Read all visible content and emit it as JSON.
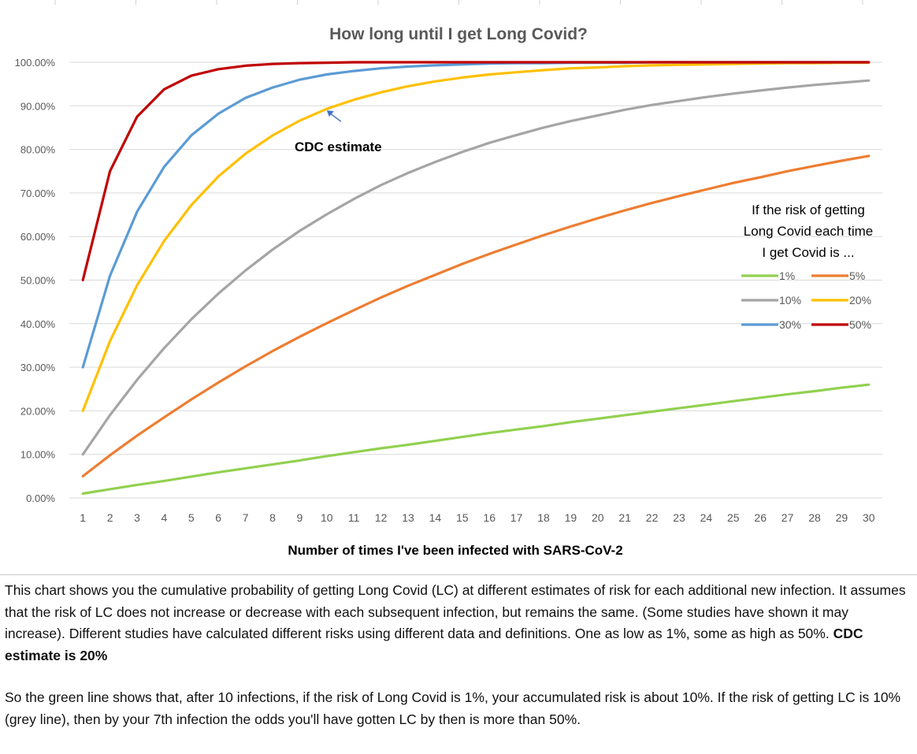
{
  "chart_data": {
    "type": "line",
    "title": "How long until I get Long Covid?",
    "xlabel": "Number of times I've been infected with SARS-CoV-2",
    "ylabel": "",
    "x": [
      1,
      2,
      3,
      4,
      5,
      6,
      7,
      8,
      9,
      10,
      11,
      12,
      13,
      14,
      15,
      16,
      17,
      18,
      19,
      20,
      21,
      22,
      23,
      24,
      25,
      26,
      27,
      28,
      29,
      30
    ],
    "ylim": [
      0,
      100
    ],
    "yticks": [
      "0.00%",
      "10.00%",
      "20.00%",
      "30.00%",
      "40.00%",
      "50.00%",
      "60.00%",
      "70.00%",
      "80.00%",
      "90.00%",
      "100.00%"
    ],
    "grid": true,
    "legend": {
      "title_lines": [
        "If the risk of getting",
        "Long Covid each time",
        "I get Covid is ..."
      ],
      "placement": "right"
    },
    "series": [
      {
        "name": "1%",
        "color": "#92d050",
        "values": [
          1.0,
          2.0,
          3.0,
          3.9,
          4.9,
          5.9,
          6.8,
          7.7,
          8.6,
          9.6,
          10.5,
          11.4,
          12.2,
          13.1,
          14.0,
          14.9,
          15.7,
          16.5,
          17.4,
          18.2,
          19.0,
          19.8,
          20.6,
          21.4,
          22.2,
          23.0,
          23.8,
          24.5,
          25.3,
          26.0
        ]
      },
      {
        "name": "5%",
        "color": "#ed7d31",
        "values": [
          5.0,
          9.8,
          14.3,
          18.5,
          22.6,
          26.5,
          30.2,
          33.7,
          37.0,
          40.1,
          43.1,
          46.0,
          48.7,
          51.2,
          53.7,
          56.0,
          58.2,
          60.3,
          62.3,
          64.2,
          66.0,
          67.7,
          69.3,
          70.8,
          72.3,
          73.6,
          75.0,
          76.2,
          77.4,
          78.5
        ]
      },
      {
        "name": "10%",
        "color": "#a5a5a5",
        "values": [
          10.0,
          19.0,
          27.1,
          34.4,
          41.0,
          46.9,
          52.2,
          57.0,
          61.3,
          65.1,
          68.6,
          71.8,
          74.6,
          77.1,
          79.4,
          81.5,
          83.3,
          85.0,
          86.5,
          87.8,
          89.1,
          90.2,
          91.1,
          92.0,
          92.8,
          93.5,
          94.2,
          94.8,
          95.3,
          95.8
        ]
      },
      {
        "name": "20%",
        "color": "#ffc000",
        "values": [
          20.0,
          36.0,
          48.8,
          59.0,
          67.2,
          73.8,
          79.0,
          83.2,
          86.6,
          89.3,
          91.4,
          93.1,
          94.5,
          95.6,
          96.5,
          97.2,
          97.7,
          98.2,
          98.6,
          98.8,
          99.1,
          99.3,
          99.4,
          99.5,
          99.6,
          99.7,
          99.8,
          99.8,
          99.9,
          99.9
        ]
      },
      {
        "name": "30%",
        "color": "#5b9bd5",
        "values": [
          30.0,
          51.0,
          65.7,
          76.0,
          83.2,
          88.2,
          91.8,
          94.2,
          96.0,
          97.2,
          98.0,
          98.6,
          99.0,
          99.3,
          99.5,
          99.7,
          99.8,
          99.8,
          99.9,
          99.9,
          99.9,
          100,
          100,
          100,
          100,
          100,
          100,
          100,
          100,
          100
        ]
      },
      {
        "name": "50%",
        "color": "#c00000",
        "values": [
          50.0,
          75.0,
          87.5,
          93.8,
          96.9,
          98.4,
          99.2,
          99.6,
          99.8,
          99.9,
          100,
          100,
          100,
          100,
          100,
          100,
          100,
          100,
          100,
          100,
          100,
          100,
          100,
          100,
          100,
          100,
          100,
          100,
          100,
          100
        ]
      }
    ],
    "annotations": [
      {
        "text": "CDC estimate",
        "points_to_x": 10,
        "points_to_series": "20%"
      }
    ]
  },
  "caption": {
    "paragraph1": "This chart shows you the cumulative probability of getting Long Covid (LC) at different estimates of risk for each additional new infection. It assumes that the risk of LC does not increase or decrease with each subsequent infection, but remains the same. (Some studies have shown it may increase). Different studies have calculated different risks using different data and definitions. One as low as 1%, some as high as 50%. ",
    "paragraph1_bold": "CDC estimate is 20%",
    "paragraph2": "So the green line shows that, after 10 infections, if the risk of Long Covid is 1%, your accumulated risk is about 10%. If the risk of getting LC is 10% (grey line), then by your 7th infection the odds you'll have gotten LC by then is more than 50%."
  }
}
